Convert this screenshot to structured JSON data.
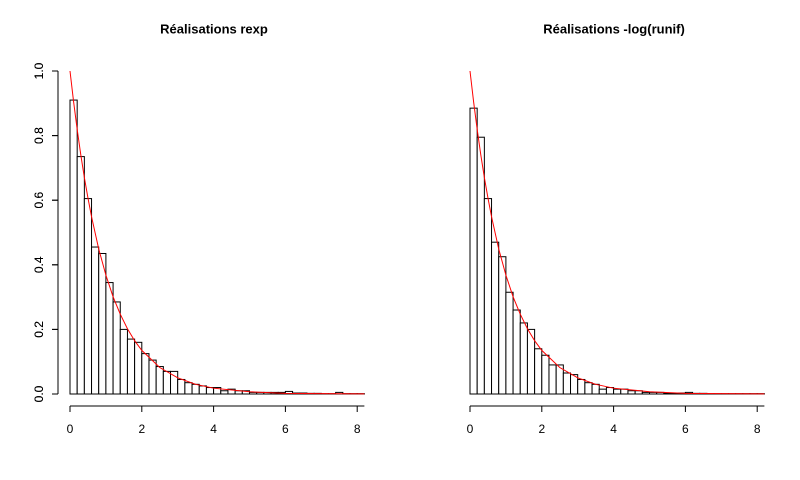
{
  "chart_data": [
    {
      "type": "histogram",
      "title": "Réalisations rexp",
      "bins": [
        0,
        0.2,
        0.4,
        0.6,
        0.8,
        1,
        1.2,
        1.4,
        1.6,
        1.8,
        2,
        2.2,
        2.4,
        2.6,
        2.8,
        3,
        3.2,
        3.4,
        3.6,
        3.8,
        4,
        4.2,
        4.4,
        4.6,
        4.8,
        5,
        5.2,
        5.4,
        5.6,
        5.8,
        6,
        6.2,
        6.4,
        6.6,
        6.8,
        7,
        7.2,
        7.4,
        7.6,
        7.8,
        8,
        8.2
      ],
      "values": [
        0.91,
        0.735,
        0.605,
        0.455,
        0.435,
        0.345,
        0.285,
        0.2,
        0.17,
        0.16,
        0.125,
        0.105,
        0.085,
        0.07,
        0.07,
        0.045,
        0.035,
        0.03,
        0.025,
        0.02,
        0.02,
        0.01,
        0.015,
        0.01,
        0.01,
        0.005,
        0.005,
        0.005,
        0.005,
        0.005,
        0.008,
        0.003,
        0.003,
        0.002,
        0.002,
        0.001,
        0.001,
        0.005,
        0.001,
        0.001,
        0.001
      ],
      "color": "#ffffff",
      "series": [
        {
          "type": "line",
          "color": "#ff0000",
          "x": [
            0,
            0.1,
            0.2,
            0.3,
            0.4,
            0.5,
            0.6,
            0.8,
            1,
            1.2,
            1.4,
            1.6,
            1.8,
            2,
            2.5,
            3,
            3.5,
            4,
            5,
            6,
            7,
            8.2
          ],
          "values": [
            1,
            0.905,
            0.819,
            0.741,
            0.67,
            0.607,
            0.549,
            0.449,
            0.368,
            0.301,
            0.247,
            0.202,
            0.165,
            0.135,
            0.082,
            0.05,
            0.03,
            0.018,
            0.007,
            0.002,
            0.001,
            0.0003
          ]
        }
      ],
      "xlim": [
        0,
        8.2
      ],
      "ylim": [
        0,
        1
      ],
      "xticks": [
        0,
        2,
        4,
        6,
        8
      ],
      "yticks": [
        {
          "value": 0,
          "label": "0.0"
        },
        0.2,
        0.4,
        0.6,
        0.8,
        {
          "value": 1,
          "label": "1.0"
        }
      ]
    },
    {
      "type": "histogram",
      "title": "Réalisations -log(runif)",
      "bins": [
        0,
        0.2,
        0.4,
        0.6,
        0.8,
        1,
        1.2,
        1.4,
        1.6,
        1.8,
        2,
        2.2,
        2.4,
        2.6,
        2.8,
        3,
        3.2,
        3.4,
        3.6,
        3.8,
        4,
        4.2,
        4.4,
        4.6,
        4.8,
        5,
        5.2,
        5.4,
        5.6,
        5.8,
        6,
        6.2,
        6.4,
        6.6,
        6.8,
        7,
        7.2,
        7.4,
        7.6,
        7.8,
        8,
        8.2
      ],
      "values": [
        0.885,
        0.795,
        0.605,
        0.47,
        0.425,
        0.315,
        0.26,
        0.22,
        0.2,
        0.14,
        0.12,
        0.09,
        0.09,
        0.065,
        0.06,
        0.045,
        0.035,
        0.03,
        0.015,
        0.02,
        0.015,
        0.015,
        0.01,
        0.01,
        0.005,
        0.005,
        0.005,
        0.003,
        0.003,
        0.003,
        0.005,
        0.002,
        0.002,
        0.001,
        0.001,
        0.001,
        0.001,
        0.001,
        0.001,
        0.001,
        0.001
      ],
      "color": "#ffffff",
      "series": [
        {
          "type": "line",
          "color": "#ff0000",
          "x": [
            0,
            0.1,
            0.2,
            0.3,
            0.4,
            0.5,
            0.6,
            0.8,
            1,
            1.2,
            1.4,
            1.6,
            1.8,
            2,
            2.5,
            3,
            3.5,
            4,
            5,
            6,
            7,
            8.2
          ],
          "values": [
            1,
            0.905,
            0.819,
            0.741,
            0.67,
            0.607,
            0.549,
            0.449,
            0.368,
            0.301,
            0.247,
            0.202,
            0.165,
            0.135,
            0.082,
            0.05,
            0.03,
            0.018,
            0.007,
            0.002,
            0.001,
            0.0003
          ]
        }
      ],
      "xlim": [
        0,
        8.2
      ],
      "ylim": [
        0,
        1
      ],
      "xticks": [
        0,
        2,
        4,
        6,
        8
      ],
      "yticks": [
        {
          "value": 0,
          "label": "0.0"
        },
        0.2,
        0.4,
        0.6,
        0.8,
        {
          "value": 1,
          "label": "1.0"
        }
      ]
    }
  ]
}
